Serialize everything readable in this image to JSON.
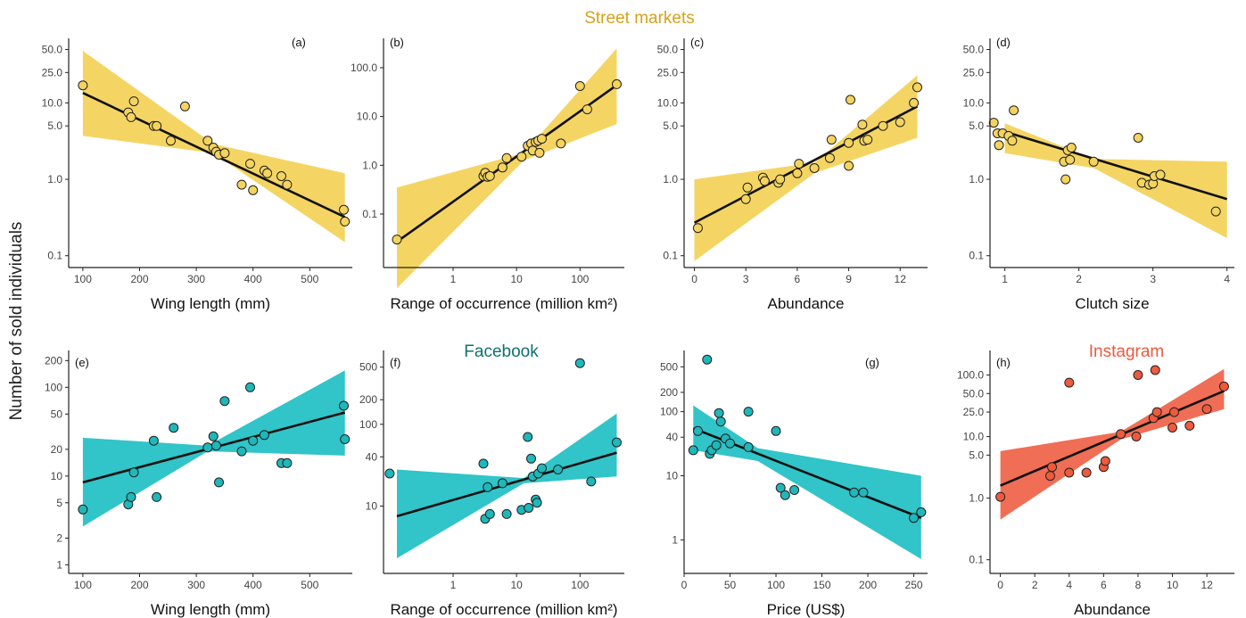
{
  "figure": {
    "y_label": "Number of sold individuals",
    "section_titles": [
      {
        "text": "Street markets",
        "color": "#d4a21a"
      },
      {
        "text": "Facebook",
        "color": "#0f7070"
      },
      {
        "text": "Instagram",
        "color": "#ee5a3d"
      }
    ]
  },
  "chart_data": [
    {
      "panel": "(a)",
      "type": "scatter",
      "group": "Street markets",
      "xlabel": "Wing length (mm)",
      "xscale": "linear",
      "xlim": [
        75,
        575
      ],
      "xticks": [
        100,
        200,
        300,
        400,
        500
      ],
      "xticklabels": [
        "100",
        "200",
        "300",
        "400",
        "500"
      ],
      "yscale": "log",
      "ylim": [
        0.07,
        70
      ],
      "yticks": [
        0.1,
        1,
        5,
        10,
        25,
        50
      ],
      "yticklabels": [
        "0.1",
        "1.0",
        "5.0",
        "10.0",
        "25.0",
        "50.0"
      ],
      "fill": "#f2cf4f",
      "point_fill": "#f4d35e",
      "points": [
        [
          100,
          17
        ],
        [
          180,
          7.5
        ],
        [
          185,
          6.5
        ],
        [
          190,
          10.5
        ],
        [
          225,
          5
        ],
        [
          230,
          5
        ],
        [
          255,
          3.2
        ],
        [
          280,
          9
        ],
        [
          320,
          3.2
        ],
        [
          330,
          2.6
        ],
        [
          335,
          2.3
        ],
        [
          340,
          2.1
        ],
        [
          350,
          2.2
        ],
        [
          380,
          0.85
        ],
        [
          395,
          1.6
        ],
        [
          400,
          0.72
        ],
        [
          420,
          1.3
        ],
        [
          425,
          1.2
        ],
        [
          450,
          1.1
        ],
        [
          460,
          0.85
        ],
        [
          560,
          0.4
        ],
        [
          562,
          0.28
        ]
      ],
      "fit": {
        "x": [
          100,
          562
        ],
        "y": [
          13.5,
          0.32
        ]
      },
      "band": {
        "x": [
          100,
          330,
          562
        ],
        "lower": [
          3.7,
          2.2,
          0.15
        ],
        "upper": [
          48,
          2.9,
          1.2
        ]
      }
    },
    {
      "panel": "(b)",
      "type": "scatter",
      "group": "Street markets",
      "xlabel": "Range of occurrence (million km²)",
      "xscale": "log",
      "xlim": [
        0.08,
        500
      ],
      "xticks": [
        1,
        10,
        100
      ],
      "xticklabels": [
        "1",
        "10",
        "100"
      ],
      "yscale": "log",
      "ylim": [
        0.008,
        400
      ],
      "yticks": [
        0.1,
        1,
        10,
        100
      ],
      "yticklabels": [
        "0.1",
        "1.0",
        "10.0",
        "100.0"
      ],
      "fill": "#f2cf4f",
      "point_fill": "#f4d35e",
      "points": [
        [
          0.13,
          0.03
        ],
        [
          3,
          0.6
        ],
        [
          3.2,
          0.7
        ],
        [
          3.5,
          0.58
        ],
        [
          3.8,
          0.6
        ],
        [
          6,
          0.9
        ],
        [
          7,
          1.4
        ],
        [
          12,
          1.5
        ],
        [
          15,
          2.5
        ],
        [
          17,
          2.8
        ],
        [
          18,
          2
        ],
        [
          20,
          3
        ],
        [
          22,
          3.2
        ],
        [
          23,
          1.8
        ],
        [
          25,
          3.5
        ],
        [
          50,
          2.8
        ],
        [
          100,
          42
        ],
        [
          130,
          14
        ],
        [
          380,
          46
        ]
      ],
      "fit": {
        "x": [
          0.13,
          380
        ],
        "y": [
          0.027,
          44
        ]
      },
      "band": {
        "x": [
          0.13,
          13,
          380
        ],
        "lower": [
          0.003,
          1.25,
          7
        ],
        "upper": [
          0.35,
          1.8,
          250
        ]
      }
    },
    {
      "panel": "(c)",
      "type": "scatter",
      "group": "Street markets",
      "xlabel": "Abundance",
      "xscale": "linear",
      "xlim": [
        -0.6,
        13.6
      ],
      "xticks": [
        0,
        3,
        6,
        9,
        12
      ],
      "xticklabels": [
        "0",
        "3",
        "6",
        "9",
        "12"
      ],
      "yscale": "log",
      "ylim": [
        0.07,
        70
      ],
      "yticks": [
        0.1,
        1,
        5,
        10,
        25,
        50
      ],
      "yticklabels": [
        "0.1",
        "1.0",
        "5.0",
        "10.0",
        "25.0",
        "50.0"
      ],
      "fill": "#f2cf4f",
      "point_fill": "#f4d35e",
      "points": [
        [
          0.2,
          0.23
        ],
        [
          3,
          0.55
        ],
        [
          3.1,
          0.78
        ],
        [
          4,
          1.05
        ],
        [
          4.1,
          0.95
        ],
        [
          4.9,
          0.9
        ],
        [
          5,
          1
        ],
        [
          6,
          1.2
        ],
        [
          6.1,
          1.6
        ],
        [
          7,
          1.4
        ],
        [
          7.9,
          1.9
        ],
        [
          8,
          3.3
        ],
        [
          9,
          1.5
        ],
        [
          9,
          3
        ],
        [
          9.1,
          11
        ],
        [
          9.8,
          5.2
        ],
        [
          9.9,
          3.2
        ],
        [
          10.1,
          3.3
        ],
        [
          11,
          5
        ],
        [
          12,
          5.6
        ],
        [
          12.8,
          10
        ],
        [
          13,
          16
        ]
      ],
      "fit": {
        "x": [
          0,
          13
        ],
        "y": [
          0.27,
          9
        ]
      },
      "band": {
        "x": [
          0,
          7,
          13
        ],
        "lower": [
          0.085,
          1.2,
          3.5
        ],
        "upper": [
          1.0,
          1.65,
          23
        ]
      }
    },
    {
      "panel": "(d)",
      "type": "scatter",
      "group": "Street markets",
      "xlabel": "Clutch size",
      "xscale": "linear",
      "xlim": [
        0.8,
        4.1
      ],
      "xticks": [
        1,
        2,
        3,
        4
      ],
      "xticklabels": [
        "1",
        "2",
        "3",
        "4"
      ],
      "yscale": "log",
      "ylim": [
        0.07,
        70
      ],
      "yticks": [
        0.1,
        1,
        5,
        10,
        25,
        50
      ],
      "yticklabels": [
        "0.1",
        "1.0",
        "5.0",
        "10.0",
        "25.0",
        "50.0"
      ],
      "fill": "#f2cf4f",
      "point_fill": "#f4d35e",
      "points": [
        [
          0.85,
          5.5
        ],
        [
          0.9,
          4
        ],
        [
          0.92,
          2.8
        ],
        [
          0.97,
          4
        ],
        [
          1.05,
          3.7
        ],
        [
          1.1,
          3.2
        ],
        [
          1.12,
          8
        ],
        [
          1.8,
          1.7
        ],
        [
          1.82,
          1
        ],
        [
          1.85,
          2.4
        ],
        [
          1.88,
          1.8
        ],
        [
          1.9,
          2.6
        ],
        [
          2.2,
          1.7
        ],
        [
          2.8,
          3.5
        ],
        [
          2.85,
          0.9
        ],
        [
          2.95,
          0.85
        ],
        [
          3,
          0.88
        ],
        [
          3.02,
          1.1
        ],
        [
          3.1,
          1.15
        ],
        [
          3.85,
          0.38
        ]
      ],
      "fit": {
        "x": [
          1,
          4
        ],
        "y": [
          4.2,
          0.55
        ]
      },
      "band": {
        "x": [
          1,
          2.2,
          4
        ],
        "lower": [
          2.2,
          1.4,
          0.17
        ],
        "upper": [
          5.4,
          1.85,
          1.7
        ]
      }
    },
    {
      "panel": "(e)",
      "type": "scatter",
      "group": "Facebook",
      "xlabel": "Wing length (mm)",
      "xscale": "linear",
      "xlim": [
        75,
        575
      ],
      "xticks": [
        100,
        200,
        300,
        400,
        500
      ],
      "xticklabels": [
        "100",
        "200",
        "300",
        "400",
        "500"
      ],
      "yscale": "log",
      "ylim": [
        0.8,
        260
      ],
      "yticks": [
        1,
        2,
        5,
        10,
        20,
        50,
        100,
        200
      ],
      "yticklabels": [
        "1",
        "2",
        "5",
        "10",
        "20",
        "50",
        "100",
        "200"
      ],
      "fill": "#14bcc0",
      "point_fill": "#1fb7ba",
      "points": [
        [
          100,
          4.2
        ],
        [
          180,
          4.8
        ],
        [
          185,
          5.8
        ],
        [
          190,
          11
        ],
        [
          225,
          25
        ],
        [
          230,
          5.8
        ],
        [
          260,
          35
        ],
        [
          320,
          21
        ],
        [
          330,
          28
        ],
        [
          335,
          22
        ],
        [
          340,
          8.5
        ],
        [
          350,
          70
        ],
        [
          380,
          19
        ],
        [
          395,
          100
        ],
        [
          400,
          25
        ],
        [
          420,
          29
        ],
        [
          450,
          14
        ],
        [
          460,
          14
        ],
        [
          560,
          62
        ],
        [
          562,
          26
        ]
      ],
      "fit": {
        "x": [
          100,
          562
        ],
        "y": [
          8.5,
          52
        ]
      },
      "band": {
        "x": [
          100,
          320,
          562
        ],
        "lower": [
          2.7,
          19,
          17
        ],
        "upper": [
          27,
          22,
          155
        ]
      }
    },
    {
      "panel": "(f)",
      "type": "scatter",
      "group": "Facebook",
      "xlabel": "Range of occurrence (million km²)",
      "xscale": "log",
      "xlim": [
        0.08,
        500
      ],
      "xticks": [
        1,
        10,
        100
      ],
      "xticklabels": [
        "1",
        "10",
        "100"
      ],
      "yscale": "log",
      "ylim": [
        1.5,
        800
      ],
      "yticks": [
        10,
        40,
        100,
        200,
        500
      ],
      "yticklabels": [
        "10",
        "40",
        "100",
        "200",
        "500"
      ],
      "fill": "#14bcc0",
      "point_fill": "#1fb7ba",
      "points": [
        [
          0.1,
          25
        ],
        [
          3,
          33
        ],
        [
          3.2,
          7
        ],
        [
          3.5,
          17
        ],
        [
          3.8,
          8
        ],
        [
          6,
          19
        ],
        [
          7,
          8
        ],
        [
          12,
          9
        ],
        [
          15,
          70
        ],
        [
          15.5,
          9.5
        ],
        [
          17,
          38
        ],
        [
          18,
          23
        ],
        [
          20,
          12
        ],
        [
          21,
          11
        ],
        [
          22,
          25
        ],
        [
          25,
          29
        ],
        [
          45,
          28
        ],
        [
          100,
          560
        ],
        [
          150,
          20
        ],
        [
          380,
          60
        ]
      ],
      "fit": {
        "x": [
          0.13,
          380
        ],
        "y": [
          7.5,
          45
        ]
      },
      "band": {
        "x": [
          0.13,
          13,
          380
        ],
        "lower": [
          2.3,
          19,
          23
        ],
        "upper": [
          28,
          22,
          135
        ]
      }
    },
    {
      "panel": "(g)",
      "type": "scatter",
      "group": "Facebook",
      "xlabel": "Price (US$)",
      "xscale": "linear",
      "xlim": [
        0,
        265
      ],
      "xticks": [
        0,
        50,
        100,
        150,
        200,
        250
      ],
      "xticklabels": [
        "0",
        "50",
        "100",
        "150",
        "200",
        "250"
      ],
      "yscale": "log",
      "ylim": [
        0.3,
        900
      ],
      "yticks": [
        1,
        10,
        40,
        100,
        200,
        500
      ],
      "yticklabels": [
        "1",
        "10",
        "40",
        "100",
        "200",
        "500"
      ],
      "fill": "#14bcc0",
      "point_fill": "#1fb7ba",
      "points": [
        [
          10,
          25
        ],
        [
          15,
          50
        ],
        [
          25,
          650
        ],
        [
          28,
          22
        ],
        [
          30,
          25
        ],
        [
          35,
          30
        ],
        [
          38,
          95
        ],
        [
          40,
          70
        ],
        [
          45,
          38
        ],
        [
          50,
          32
        ],
        [
          70,
          100
        ],
        [
          70,
          28
        ],
        [
          100,
          50
        ],
        [
          105,
          6.5
        ],
        [
          110,
          5
        ],
        [
          120,
          6
        ],
        [
          185,
          5.5
        ],
        [
          195,
          5.5
        ],
        [
          250,
          2.2
        ],
        [
          258,
          2.7
        ]
      ],
      "fit": {
        "x": [
          10,
          258
        ],
        "y": [
          55,
          2.2
        ]
      },
      "band": {
        "x": [
          10,
          80,
          258
        ],
        "lower": [
          25,
          17,
          0.5
        ],
        "upper": [
          125,
          27,
          10
        ]
      }
    },
    {
      "panel": "(h)",
      "type": "scatter",
      "group": "Instagram",
      "xlabel": "Abundance",
      "xscale": "linear",
      "xlim": [
        -0.6,
        13.6
      ],
      "xticks": [
        0,
        2,
        4,
        6,
        8,
        10,
        12
      ],
      "xticklabels": [
        "0",
        "2",
        "4",
        "6",
        "8",
        "10",
        "12"
      ],
      "yscale": "log",
      "ylim": [
        0.06,
        250
      ],
      "yticks": [
        0.1,
        1,
        5,
        10,
        25,
        50,
        100
      ],
      "yticklabels": [
        "0.1",
        "1.0",
        "5.0",
        "10.0",
        "25.0",
        "50.0",
        "100.0"
      ],
      "fill": "#ee5a3d",
      "point_fill": "#ee5a3d",
      "points": [
        [
          0,
          1.05
        ],
        [
          2.9,
          2.3
        ],
        [
          3,
          3.2
        ],
        [
          4,
          2.6
        ],
        [
          4,
          75
        ],
        [
          5,
          2.6
        ],
        [
          6,
          3.2
        ],
        [
          6.1,
          4
        ],
        [
          7,
          11
        ],
        [
          7.9,
          10
        ],
        [
          8,
          100
        ],
        [
          8.9,
          20
        ],
        [
          9,
          120
        ],
        [
          9.1,
          25
        ],
        [
          10,
          14
        ],
        [
          10.1,
          25
        ],
        [
          11,
          15
        ],
        [
          12,
          28
        ],
        [
          13,
          65
        ]
      ],
      "fit": {
        "x": [
          0,
          13
        ],
        "y": [
          1.6,
          55
        ]
      },
      "band": {
        "x": [
          0,
          7,
          13
        ],
        "lower": [
          0.45,
          9,
          28
        ],
        "upper": [
          5.8,
          12,
          125
        ]
      }
    }
  ]
}
